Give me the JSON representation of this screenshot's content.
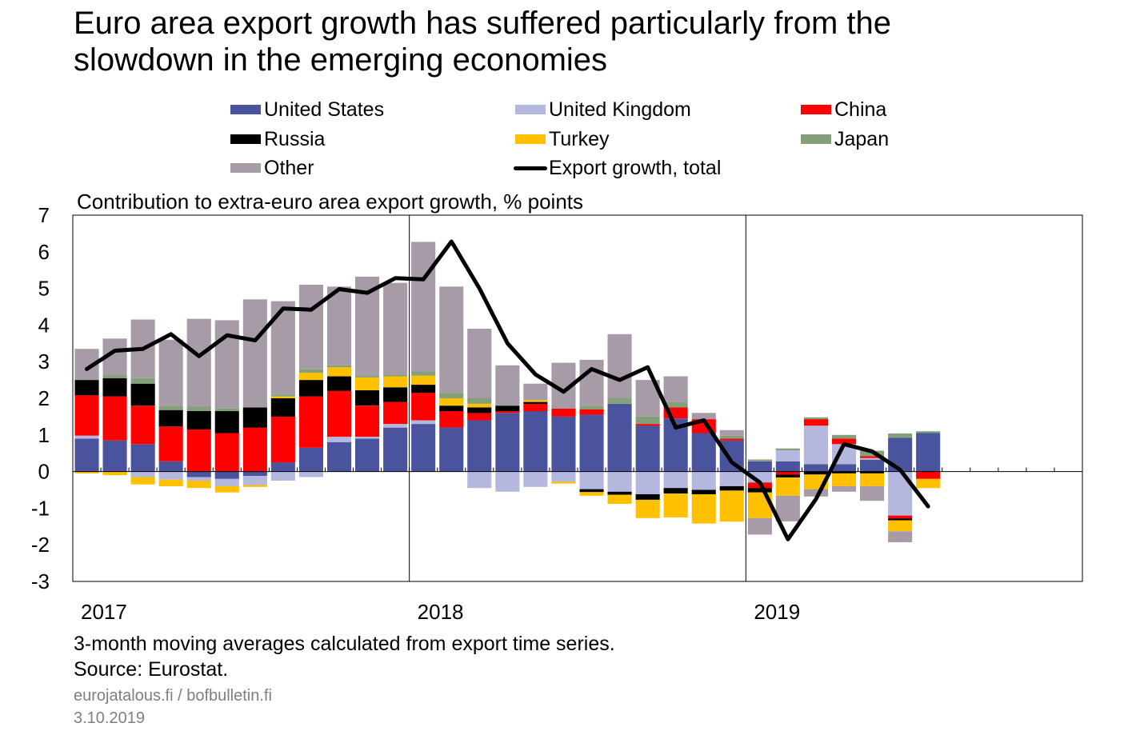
{
  "header": {
    "title_line1": "Euro area export growth has suffered particularly from the",
    "title_line2": "slowdown in the emerging economies"
  },
  "legend": {
    "items": [
      {
        "label": "United States",
        "color": "#4a539e",
        "kind": "swatch"
      },
      {
        "label": "United Kingdom",
        "color": "#b4b8de",
        "kind": "swatch"
      },
      {
        "label": "China",
        "color": "#ff0000",
        "kind": "swatch"
      },
      {
        "label": "Russia",
        "color": "#000000",
        "kind": "swatch"
      },
      {
        "label": "Turkey",
        "color": "#ffc000",
        "kind": "swatch"
      },
      {
        "label": "Japan",
        "color": "#84a07a",
        "kind": "swatch"
      },
      {
        "label": "Other",
        "color": "#a79ba8",
        "kind": "swatch"
      },
      {
        "label": "Export growth, total",
        "color": "#000000",
        "kind": "line"
      }
    ]
  },
  "chart_subtitle": "Contribution to extra-euro area export growth, % points",
  "chart_data": {
    "type": "bar",
    "stacked": true,
    "ylim": [
      -3,
      7
    ],
    "yticks": [
      "7",
      "6",
      "5",
      "4",
      "3",
      "2",
      "1",
      "0",
      "-1",
      "-2",
      "-3"
    ],
    "xlabels": [
      "2017",
      "2018",
      "2019"
    ],
    "months_total": 36,
    "grid": "vertical lines at year boundaries",
    "series": [
      {
        "name": "United States",
        "color": "#4a539e",
        "values": [
          0.9,
          0.85,
          0.75,
          0.28,
          -0.15,
          -0.2,
          -0.12,
          0.25,
          0.65,
          0.8,
          0.9,
          1.2,
          1.3,
          1.2,
          1.4,
          1.6,
          1.65,
          1.5,
          1.55,
          1.85,
          1.25,
          1.45,
          1.05,
          0.85,
          0.28,
          0.28,
          0.2,
          0.2,
          0.32,
          0.92,
          1.05
        ]
      },
      {
        "name": "United Kingdom",
        "color": "#b4b8de",
        "values": [
          0.08,
          0.0,
          -0.15,
          -0.22,
          -0.1,
          -0.2,
          -0.25,
          -0.25,
          -0.15,
          0.15,
          0.05,
          0.1,
          0.1,
          0.0,
          -0.45,
          -0.55,
          -0.42,
          -0.28,
          -0.48,
          -0.55,
          -0.62,
          -0.45,
          -0.5,
          -0.4,
          -0.3,
          0.3,
          1.05,
          0.55,
          0.05,
          -1.2,
          0.0
        ]
      },
      {
        "name": "China",
        "color": "#ff0000",
        "values": [
          1.1,
          1.2,
          1.05,
          0.95,
          1.15,
          1.05,
          1.2,
          1.25,
          1.4,
          1.25,
          0.85,
          0.6,
          0.75,
          0.45,
          0.2,
          0.05,
          0.2,
          0.22,
          0.15,
          0.0,
          0.05,
          0.3,
          0.38,
          0.05,
          -0.15,
          -0.08,
          0.18,
          0.15,
          0.05,
          -0.08,
          -0.2
        ]
      },
      {
        "name": "Russia",
        "color": "#000000",
        "values": [
          0.42,
          0.5,
          0.6,
          0.45,
          0.5,
          0.6,
          0.55,
          0.5,
          0.45,
          0.4,
          0.42,
          0.4,
          0.22,
          0.15,
          0.15,
          0.15,
          0.05,
          0.0,
          -0.08,
          -0.08,
          -0.15,
          -0.15,
          -0.12,
          -0.12,
          -0.12,
          -0.08,
          -0.08,
          -0.05,
          -0.05,
          -0.05,
          0.0
        ]
      },
      {
        "name": "Turkey",
        "color": "#ffc000",
        "values": [
          -0.05,
          -0.1,
          -0.2,
          -0.18,
          -0.2,
          -0.17,
          -0.05,
          0.05,
          0.2,
          0.25,
          0.35,
          0.3,
          0.25,
          0.2,
          0.1,
          0.0,
          0.05,
          -0.05,
          -0.1,
          -0.25,
          -0.5,
          -0.65,
          -0.8,
          -0.85,
          -0.7,
          -0.5,
          -0.4,
          -0.35,
          -0.35,
          -0.3,
          -0.25
        ]
      },
      {
        "name": "Japan",
        "color": "#84a07a",
        "values": [
          0.0,
          0.08,
          0.15,
          0.12,
          0.12,
          0.08,
          0.0,
          0.05,
          0.1,
          0.05,
          0.05,
          0.05,
          0.1,
          0.15,
          0.15,
          0.0,
          0.0,
          0.0,
          0.1,
          0.15,
          0.2,
          0.15,
          0.0,
          0.08,
          0.05,
          0.05,
          0.05,
          0.1,
          0.15,
          0.12,
          0.05
        ]
      },
      {
        "name": "Other",
        "color": "#a79ba8",
        "values": [
          0.85,
          1.0,
          1.6,
          1.8,
          2.4,
          2.4,
          2.95,
          2.55,
          2.3,
          2.15,
          2.7,
          2.5,
          3.55,
          2.9,
          1.9,
          1.1,
          0.45,
          1.25,
          1.25,
          1.75,
          1.0,
          0.7,
          0.17,
          0.15,
          -0.45,
          -0.7,
          -0.2,
          -0.15,
          -0.4,
          -0.3,
          0.0
        ]
      },
      {
        "name": "Export growth, total",
        "color": "#000000",
        "kind": "line",
        "values": [
          2.8,
          3.3,
          3.35,
          3.75,
          3.15,
          3.72,
          3.58,
          4.45,
          4.42,
          4.98,
          4.88,
          5.28,
          5.25,
          6.28,
          5.0,
          3.5,
          2.65,
          2.18,
          2.8,
          2.5,
          2.85,
          1.2,
          1.4,
          0.25,
          -0.3,
          -1.85,
          -0.75,
          0.75,
          0.55,
          0.05,
          -0.95
        ]
      }
    ]
  },
  "footer": {
    "note": "3-month moving averages calculated from export time series.",
    "source": "Source: Eurostat.",
    "site": "eurojatalous.fi  / bofbulletin.fi",
    "date": "3.10.2019"
  }
}
